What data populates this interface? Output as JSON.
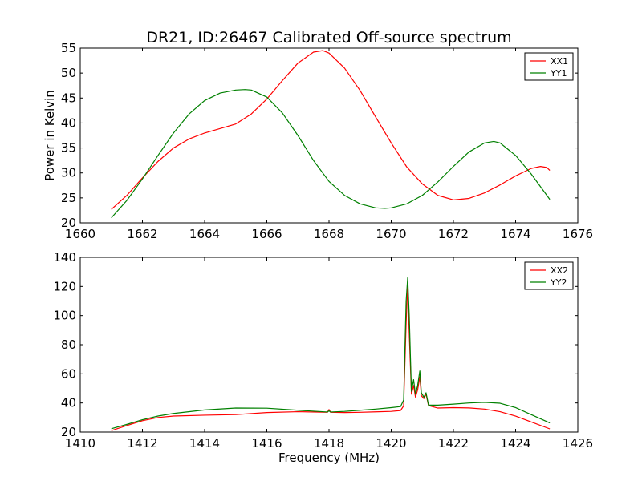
{
  "chart_data": [
    {
      "type": "line",
      "title": "DR21, ID:26467 Calibrated Off-source spectrum",
      "xlabel": "",
      "ylabel": "Power in Kelvin",
      "xlim": [
        1660,
        1676
      ],
      "ylim": [
        20,
        55
      ],
      "xticks": [
        1660,
        1662,
        1664,
        1666,
        1668,
        1670,
        1672,
        1674,
        1676
      ],
      "yticks": [
        20,
        25,
        30,
        35,
        40,
        45,
        50,
        55
      ],
      "grid": false,
      "legend_position": "top-right",
      "series": [
        {
          "name": "XX1",
          "color": "#ff0000",
          "x": [
            1661.0,
            1661.5,
            1662.0,
            1662.5,
            1663.0,
            1663.5,
            1664.0,
            1664.5,
            1665.0,
            1665.5,
            1666.0,
            1666.5,
            1667.0,
            1667.5,
            1667.8,
            1668.0,
            1668.5,
            1669.0,
            1669.5,
            1670.0,
            1670.5,
            1671.0,
            1671.5,
            1672.0,
            1672.5,
            1673.0,
            1673.5,
            1674.0,
            1674.5,
            1674.8,
            1675.0,
            1675.1
          ],
          "y": [
            22.7,
            25.5,
            29.0,
            32.3,
            35.0,
            36.8,
            38.0,
            38.9,
            39.8,
            41.8,
            44.8,
            48.5,
            52.0,
            54.2,
            54.5,
            54.0,
            51.0,
            46.5,
            41.2,
            36.0,
            31.2,
            27.8,
            25.5,
            24.6,
            24.9,
            26.0,
            27.6,
            29.4,
            30.9,
            31.3,
            31.1,
            30.5
          ]
        },
        {
          "name": "YY1",
          "color": "#008000",
          "x": [
            1661.0,
            1661.5,
            1662.0,
            1662.5,
            1663.0,
            1663.5,
            1664.0,
            1664.5,
            1665.0,
            1665.3,
            1665.5,
            1666.0,
            1666.5,
            1667.0,
            1667.5,
            1668.0,
            1668.5,
            1669.0,
            1669.5,
            1669.8,
            1670.0,
            1670.5,
            1671.0,
            1671.5,
            1672.0,
            1672.5,
            1673.0,
            1673.3,
            1673.5,
            1674.0,
            1674.5,
            1675.1
          ],
          "y": [
            21.0,
            24.5,
            28.8,
            33.5,
            38.0,
            41.8,
            44.5,
            46.0,
            46.6,
            46.7,
            46.6,
            45.2,
            42.0,
            37.5,
            32.5,
            28.3,
            25.5,
            23.8,
            23.0,
            22.9,
            23.0,
            23.8,
            25.5,
            28.2,
            31.3,
            34.2,
            36.0,
            36.3,
            36.0,
            33.5,
            29.8,
            24.7
          ]
        }
      ]
    },
    {
      "type": "line",
      "title": "",
      "xlabel": "Frequency (MHz)",
      "ylabel": "",
      "xlim": [
        1410,
        1426
      ],
      "ylim": [
        20,
        140
      ],
      "xticks": [
        1410,
        1412,
        1414,
        1416,
        1418,
        1420,
        1422,
        1424,
        1426
      ],
      "yticks": [
        20,
        40,
        60,
        80,
        100,
        120,
        140
      ],
      "grid": false,
      "legend_position": "top-right",
      "series": [
        {
          "name": "XX2",
          "color": "#ff0000",
          "x": [
            1411.0,
            1411.5,
            1412.0,
            1412.5,
            1413.0,
            1414.0,
            1415.0,
            1416.0,
            1417.0,
            1417.95,
            1418.0,
            1418.05,
            1418.5,
            1419.0,
            1419.5,
            1420.0,
            1420.3,
            1420.4,
            1420.48,
            1420.53,
            1420.58,
            1420.65,
            1420.72,
            1420.78,
            1420.85,
            1420.92,
            1420.97,
            1421.05,
            1421.12,
            1421.2,
            1421.5,
            1422.0,
            1422.5,
            1423.0,
            1423.5,
            1424.0,
            1424.5,
            1425.1
          ],
          "y": [
            21.0,
            24.5,
            27.8,
            30.0,
            31.0,
            31.6,
            32.0,
            33.4,
            34.0,
            33.6,
            35.5,
            33.6,
            33.4,
            33.6,
            33.9,
            34.2,
            34.8,
            38.0,
            95.0,
            120.0,
            88.0,
            46.0,
            52.0,
            44.0,
            49.0,
            58.0,
            45.0,
            43.0,
            46.0,
            38.2,
            36.5,
            36.8,
            36.6,
            35.8,
            34.0,
            31.0,
            27.0,
            22.2
          ]
        },
        {
          "name": "YY2",
          "color": "#008000",
          "x": [
            1411.0,
            1411.5,
            1412.0,
            1412.5,
            1413.0,
            1414.0,
            1415.0,
            1416.0,
            1417.0,
            1417.95,
            1418.0,
            1418.05,
            1418.5,
            1419.0,
            1419.5,
            1420.0,
            1420.3,
            1420.4,
            1420.48,
            1420.53,
            1420.58,
            1420.65,
            1420.72,
            1420.78,
            1420.85,
            1420.92,
            1420.97,
            1421.05,
            1421.12,
            1421.2,
            1421.5,
            1422.0,
            1422.5,
            1423.0,
            1423.5,
            1424.0,
            1424.5,
            1425.1
          ],
          "y": [
            22.3,
            25.3,
            28.5,
            31.0,
            32.8,
            35.2,
            36.5,
            36.4,
            35.0,
            33.8,
            34.5,
            33.8,
            34.2,
            35.0,
            35.8,
            36.8,
            37.5,
            42.0,
            110.0,
            126.0,
            100.0,
            48.0,
            56.0,
            46.0,
            52.0,
            62.0,
            47.0,
            44.0,
            47.0,
            38.5,
            38.5,
            39.2,
            40.0,
            40.4,
            39.8,
            36.8,
            32.0,
            26.3
          ]
        }
      ]
    }
  ]
}
